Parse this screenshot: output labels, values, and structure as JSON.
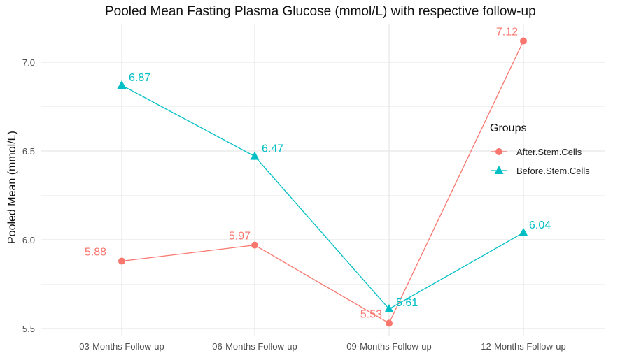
{
  "chart_data": {
    "type": "line",
    "title": "Pooled Mean Fasting Plasma Glucose (mmol/L) with respective follow-up",
    "xlabel": "",
    "ylabel": "Pooled Mean (mmol/L)",
    "categories": [
      "03-Months Follow-up",
      "06-Months Follow-up",
      "09-Months Follow-up",
      "12-Months Follow-up"
    ],
    "yticks": [
      "5.5",
      "6.0",
      "6.5",
      "7.0"
    ],
    "ylim": [
      5.46,
      7.2
    ],
    "grid": true,
    "legend": {
      "title": "Groups",
      "placement": "right"
    },
    "series": [
      {
        "name": "After.Stem.Cells",
        "values": [
          5.88,
          5.97,
          5.53,
          7.12
        ],
        "labels": [
          "5.88",
          "5.97",
          "5.53",
          "7.12"
        ],
        "color": "#F8766D",
        "marker": "circle"
      },
      {
        "name": "Before.Stem.Cells",
        "values": [
          6.87,
          6.47,
          5.61,
          6.04
        ],
        "labels": [
          "6.87",
          "6.47",
          "5.61",
          "6.04"
        ],
        "color": "#00BFC4",
        "marker": "triangle"
      }
    ]
  }
}
